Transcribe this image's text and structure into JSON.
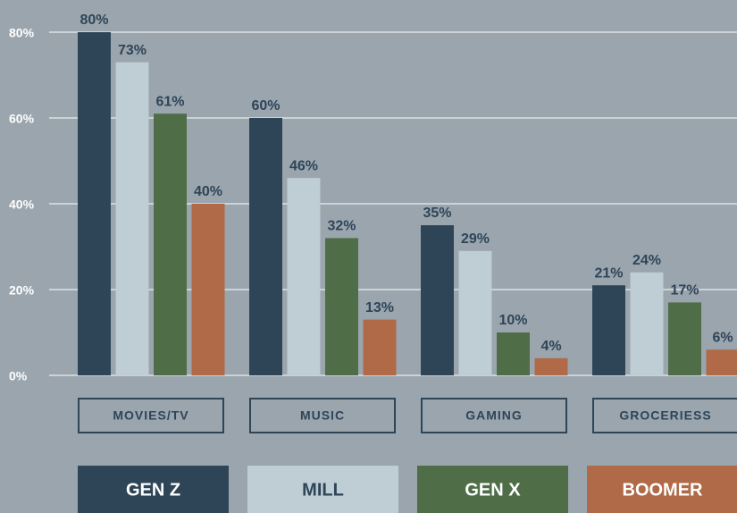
{
  "chart_data": {
    "type": "bar",
    "categories": [
      "MOVIES/TV",
      "MUSIC",
      "GAMING",
      "GROCERIESS"
    ],
    "series": [
      {
        "name": "GEN Z",
        "color": "#2e4558",
        "values": [
          80,
          60,
          35,
          21
        ],
        "value_labels": [
          "80%",
          "60%",
          "35%",
          "21%"
        ]
      },
      {
        "name": "MILL",
        "color": "#bfcdd4",
        "values": [
          73,
          46,
          29,
          24
        ],
        "value_labels": [
          "73%",
          "46%",
          "29%",
          "24%"
        ]
      },
      {
        "name": "GEN X",
        "color": "#4f6e48",
        "values": [
          61,
          32,
          10,
          17
        ],
        "value_labels": [
          "61%",
          "32%",
          "10%",
          "17%"
        ]
      },
      {
        "name": "BOOMER",
        "color": "#b06a48",
        "values": [
          40,
          13,
          4,
          6
        ],
        "value_labels": [
          "40%",
          "13%",
          "4%",
          "6%"
        ]
      }
    ],
    "ylim": [
      0,
      80
    ],
    "yticks": [
      {
        "value": 0,
        "label": "0%"
      },
      {
        "value": 20,
        "label": "20%"
      },
      {
        "value": 40,
        "label": "40%"
      },
      {
        "value": 60,
        "label": "60%"
      },
      {
        "value": 80,
        "label": "80%"
      }
    ],
    "grid": true
  }
}
